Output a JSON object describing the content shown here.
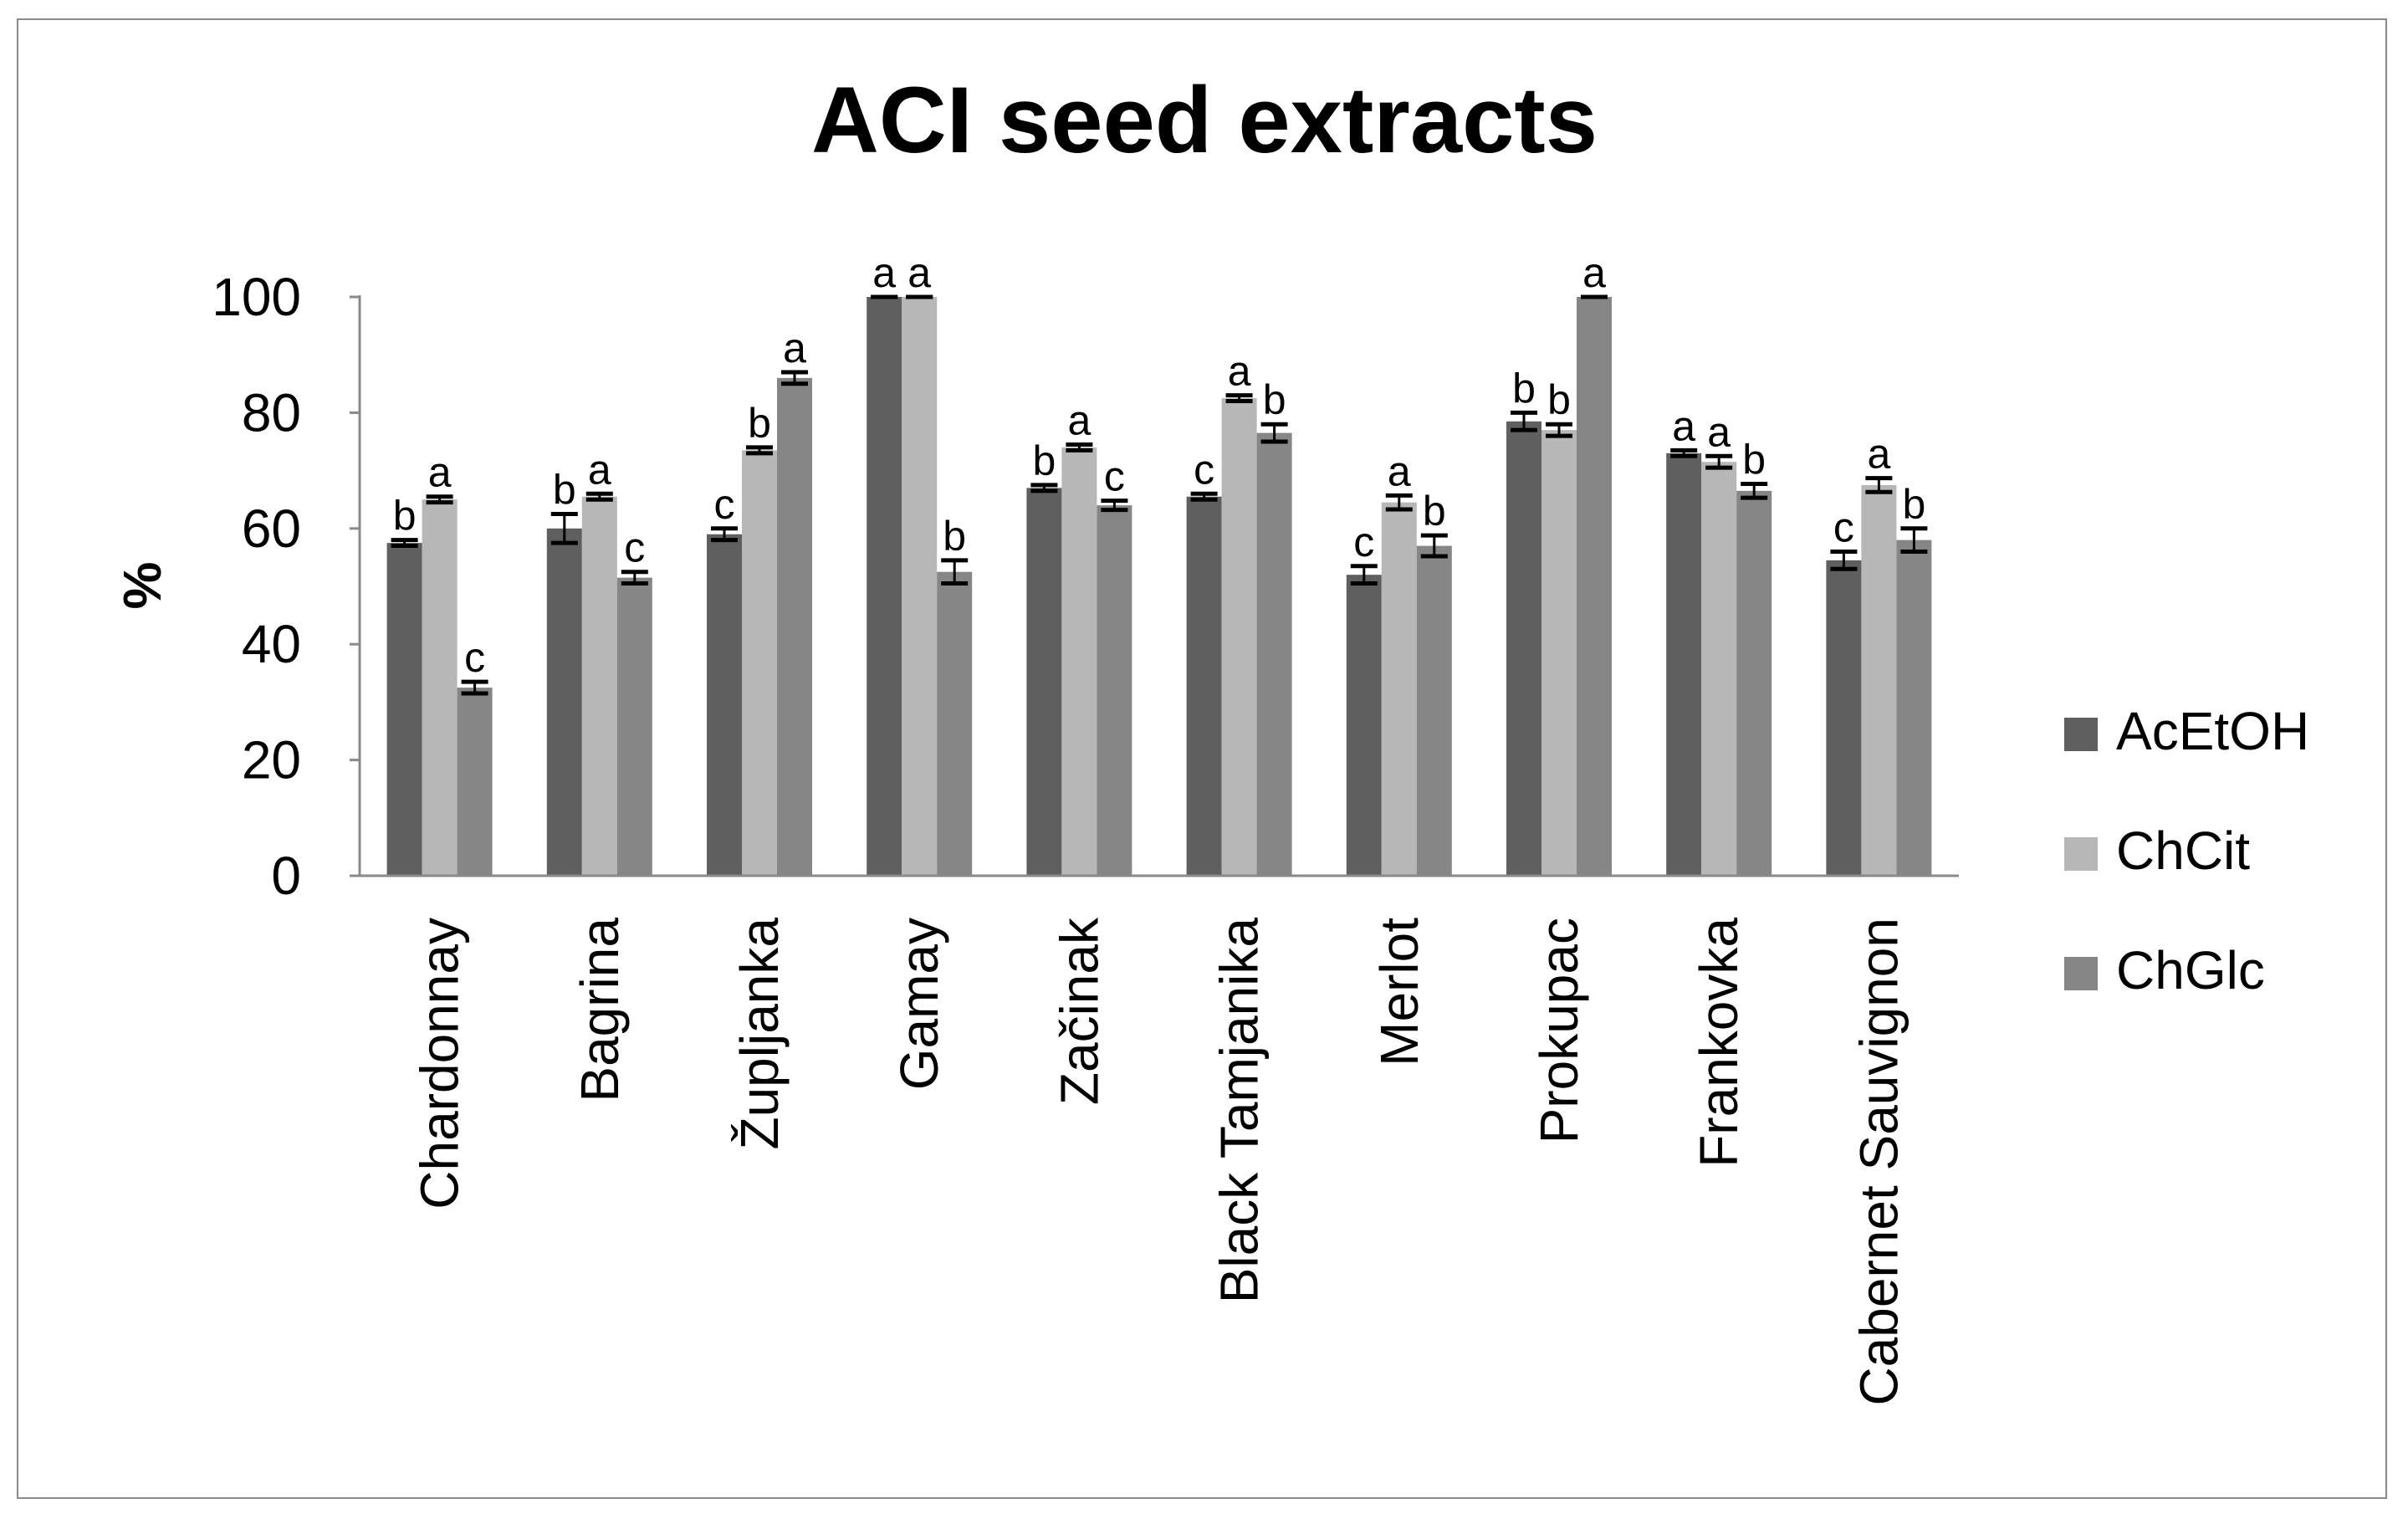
{
  "chart_data": {
    "type": "bar",
    "title": "ACI seed extracts",
    "xlabel": "",
    "ylabel": "%",
    "ylim": [
      0,
      100
    ],
    "yticks": [
      0,
      20,
      40,
      60,
      80,
      100
    ],
    "grid": false,
    "legend_position": "right",
    "categories": [
      "Chardonnay",
      "Bagrina",
      "Župljanka",
      "Gamay",
      "Začinak",
      "Black Tamjanika",
      "Merlot",
      "Prokupac",
      "Frankovka",
      "Cabernet Sauvignon"
    ],
    "series": [
      {
        "name": "AcEtOH",
        "color": "#5f5f5f",
        "values": [
          57.5,
          60,
          59,
          100,
          67,
          65.5,
          52,
          78.5,
          73,
          54.5
        ],
        "errors": [
          0.5,
          2.5,
          1,
          0,
          0.5,
          0.5,
          1.5,
          1.5,
          0.5,
          1.5
        ],
        "labels": [
          "b",
          "b",
          "c",
          "a",
          "b",
          "c",
          "c",
          "b",
          "a",
          "c"
        ]
      },
      {
        "name": "ChCit",
        "color": "#b7b7b7",
        "values": [
          65,
          65.5,
          73.5,
          100,
          74,
          82.5,
          64.5,
          77,
          71.5,
          67.5
        ],
        "errors": [
          0.5,
          0.5,
          0.5,
          0,
          0.5,
          0.5,
          1.2,
          1,
          1,
          1.2
        ],
        "labels": [
          "a",
          "a",
          "b",
          "a",
          "a",
          "a",
          "a",
          "b",
          "a",
          "a"
        ]
      },
      {
        "name": "ChGlc",
        "color": "#868686",
        "values": [
          32.5,
          51.5,
          86,
          52.5,
          64,
          76.5,
          57,
          100,
          66.5,
          58
        ],
        "errors": [
          1,
          1,
          1,
          2,
          0.8,
          1.5,
          1.8,
          0,
          1.2,
          2
        ],
        "labels": [
          "c",
          "c",
          "a",
          "b",
          "c",
          "b",
          "b",
          "a",
          "b",
          "b"
        ]
      }
    ]
  }
}
